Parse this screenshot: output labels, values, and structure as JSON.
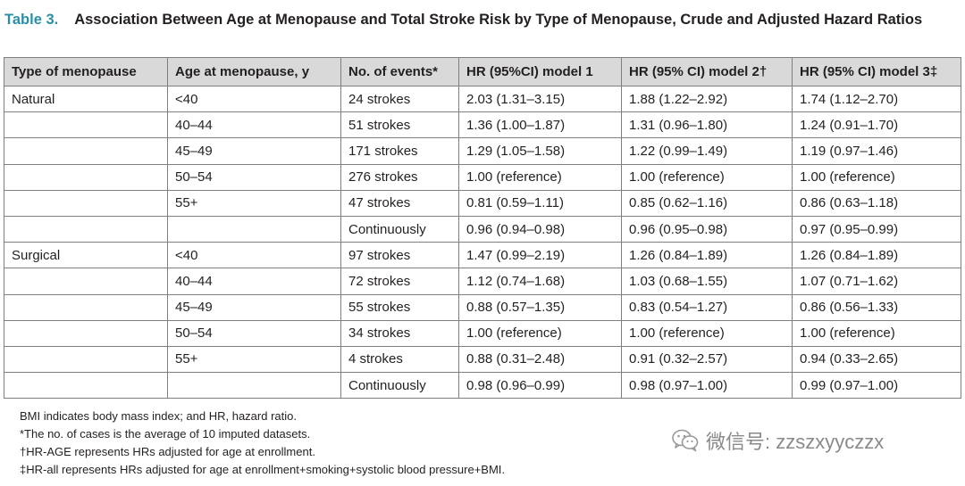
{
  "caption": {
    "label": "Table 3.",
    "title": "Association Between Age at Menopause and Total Stroke Risk by Type of Menopause, Crude and Adjusted Hazard Ratios"
  },
  "table": {
    "headers": [
      "Type of menopause",
      "Age at menopause, y",
      "No. of events*",
      "HR (95%CI) model 1",
      "HR (95% CI) model 2†",
      "HR (95% CI) model 3‡"
    ],
    "rows": [
      [
        "Natural",
        "<40",
        "24 strokes",
        "2.03 (1.31–3.15)",
        "1.88 (1.22–2.92)",
        "1.74 (1.12–2.70)"
      ],
      [
        "",
        "40–44",
        "51 strokes",
        "1.36 (1.00–1.87)",
        "1.31 (0.96–1.80)",
        "1.24 (0.91–1.70)"
      ],
      [
        "",
        "45–49",
        "171 strokes",
        "1.29 (1.05–1.58)",
        "1.22 (0.99–1.49)",
        "1.19 (0.97–1.46)"
      ],
      [
        "",
        "50–54",
        "276 strokes",
        "1.00 (reference)",
        "1.00 (reference)",
        "1.00 (reference)"
      ],
      [
        "",
        "55+",
        "47 strokes",
        "0.81 (0.59–1.11)",
        "0.85 (0.62–1.16)",
        "0.86 (0.63–1.18)"
      ],
      [
        "",
        "",
        "Continuously",
        "0.96 (0.94–0.98)",
        "0.96 (0.95–0.98)",
        "0.97 (0.95–0.99)"
      ],
      [
        "Surgical",
        "<40",
        "97 strokes",
        "1.47 (0.99–2.19)",
        "1.26 (0.84–1.89)",
        "1.26 (0.84–1.89)"
      ],
      [
        "",
        "40–44",
        "72 strokes",
        "1.12 (0.74–1.68)",
        "1.03 (0.68–1.55)",
        "1.07 (0.71–1.62)"
      ],
      [
        "",
        "45–49",
        "55 strokes",
        "0.88 (0.57–1.35)",
        "0.83 (0.54–1.27)",
        "0.86 (0.56–1.33)"
      ],
      [
        "",
        "50–54",
        "34 strokes",
        "1.00 (reference)",
        "1.00 (reference)",
        "1.00 (reference)"
      ],
      [
        "",
        "55+",
        "4 strokes",
        "0.88 (0.31–2.48)",
        "0.91 (0.32–2.57)",
        "0.94 (0.33–2.65)"
      ],
      [
        "",
        "",
        "Continuously",
        "0.98 (0.96–0.99)",
        "0.98 (0.97–1.00)",
        "0.99 (0.97–1.00)"
      ]
    ]
  },
  "footnotes": [
    "BMI indicates body mass index; and HR, hazard ratio.",
    "*The no. of cases is the average of 10 imputed datasets.",
    "†HR-AGE represents HRs adjusted for age at enrollment.",
    "‡HR-all represents HRs adjusted for age at enrollment+smoking+systolic blood pressure+BMI."
  ],
  "watermark": {
    "icon": "wechat-icon",
    "text": "微信号: zzszxyyczzx"
  },
  "colors": {
    "label_accent": "#2a8fa6",
    "header_bg": "#d9d9d9",
    "border": "#7f7f7f"
  }
}
